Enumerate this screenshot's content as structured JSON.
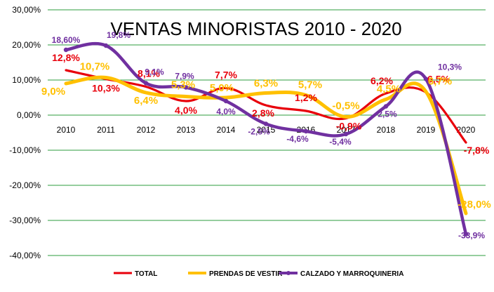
{
  "chart_data": {
    "type": "line",
    "title": "VENTAS MINORISTAS 2010 - 2020",
    "xlabel": "",
    "ylabel": "",
    "categories": [
      "2010",
      "2011",
      "2012",
      "2013",
      "2014",
      "2015",
      "2016",
      "2017",
      "2018",
      "2019",
      "2020"
    ],
    "y_ticks": [
      "30,00%",
      "20,00%",
      "10,00%",
      "0,00%",
      "-10,00%",
      "-20,00%",
      "-30,00%",
      "-40,00%"
    ],
    "ylim": [
      -40,
      30
    ],
    "grid": true,
    "legend_position": "bottom",
    "series": [
      {
        "name": "TOTAL",
        "color": "#e8000b",
        "values": [
          12.8,
          10.3,
          8.1,
          4.0,
          7.7,
          2.8,
          1.2,
          -0.9,
          6.2,
          6.5,
          -7.8
        ],
        "labels": [
          "12,8%",
          "10,3%",
          "8,1%",
          "4,0%",
          "7,7%",
          "2,8%",
          "1,2%",
          "-0,9%",
          "6,2%",
          "6,5%",
          "-7,8%"
        ]
      },
      {
        "name": "PRENDAS DE VESTIR",
        "color": "#ffc000",
        "values": [
          9.0,
          10.7,
          6.4,
          5.3,
          5.0,
          6.3,
          5.7,
          -0.5,
          4.5,
          6.7,
          -28.0
        ],
        "labels": [
          "9,0%",
          "10,7%",
          "6,4%",
          "5,3%",
          "5,0%",
          "6,3%",
          "5,7%",
          "-0,5%",
          "4,5%",
          "6,7%",
          "-28,0%"
        ]
      },
      {
        "name": "CALZADO Y MARROQUINERIA",
        "color": "#7030a0",
        "values": [
          18.6,
          19.8,
          9.1,
          7.9,
          4.0,
          -2.5,
          -4.6,
          -5.4,
          2.5,
          10.3,
          -33.9
        ],
        "labels": [
          "18,60%",
          "19,8%",
          "9,1%",
          "7,9%",
          "4,0%",
          "-2,5%",
          "-4,6%",
          "-5,4%",
          "2,5%",
          "10,3%",
          "-33,9%"
        ]
      }
    ]
  }
}
